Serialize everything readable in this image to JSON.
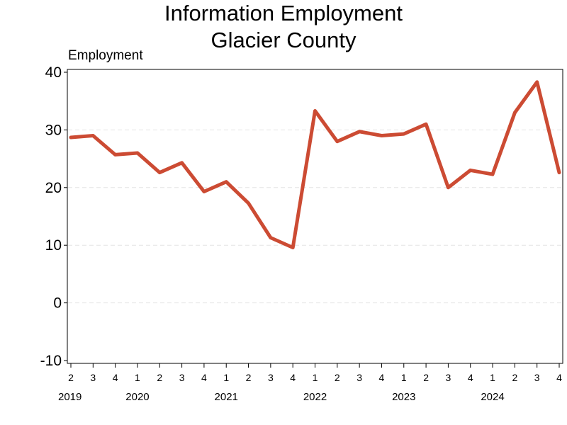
{
  "chart_data": {
    "type": "line",
    "title": [
      "Information Employment",
      "Glacier County"
    ],
    "ylabel": "Employment",
    "xlabel": "",
    "ylim": [
      -10,
      40
    ],
    "yticks": [
      -10,
      0,
      10,
      20,
      30,
      40
    ],
    "grid": "horizontal dashed",
    "x_quarters": [
      "2",
      "3",
      "4",
      "1",
      "2",
      "3",
      "4",
      "1",
      "2",
      "3",
      "4",
      "1",
      "2",
      "3",
      "4",
      "1",
      "2",
      "3",
      "4",
      "1",
      "2",
      "3",
      "4"
    ],
    "x_years": [
      {
        "label": "2019",
        "at_index": 0
      },
      {
        "label": "2020",
        "at_index": 3
      },
      {
        "label": "2021",
        "at_index": 7
      },
      {
        "label": "2022",
        "at_index": 11
      },
      {
        "label": "2023",
        "at_index": 15
      },
      {
        "label": "2024",
        "at_index": 19
      }
    ],
    "series": [
      {
        "color": "#cc4b33",
        "values": [
          28.7,
          29.0,
          25.7,
          26.0,
          22.6,
          24.3,
          19.3,
          21.0,
          17.3,
          11.3,
          9.6,
          33.3,
          28.0,
          29.7,
          29.0,
          29.3,
          31.0,
          20.0,
          23.0,
          22.3,
          33.0,
          38.3,
          22.6
        ]
      }
    ]
  }
}
